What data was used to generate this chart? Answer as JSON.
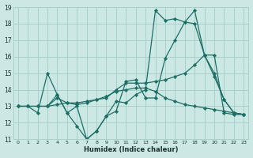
{
  "xlabel": "Humidex (Indice chaleur)",
  "bg_color": "#cce8e4",
  "grid_color": "#aacfcb",
  "line_color": "#1e6e66",
  "xlim_min": -0.5,
  "xlim_max": 23.5,
  "ylim_min": 11,
  "ylim_max": 19,
  "yticks": [
    11,
    12,
    13,
    14,
    15,
    16,
    17,
    18,
    19
  ],
  "xticks": [
    0,
    1,
    2,
    3,
    4,
    5,
    6,
    7,
    8,
    9,
    10,
    11,
    12,
    13,
    14,
    15,
    16,
    17,
    18,
    19,
    20,
    21,
    22,
    23
  ],
  "lines": [
    {
      "x": [
        0,
        1,
        2,
        3,
        4,
        5,
        6,
        7,
        8,
        9,
        10,
        11,
        12,
        13,
        14,
        15,
        16,
        17,
        18,
        19,
        20,
        21,
        22,
        23
      ],
      "y": [
        13.0,
        13.0,
        12.6,
        15.0,
        13.7,
        12.6,
        11.8,
        11.0,
        11.5,
        12.4,
        12.7,
        14.5,
        14.6,
        13.5,
        13.5,
        15.9,
        17.0,
        18.1,
        18.8,
        16.1,
        14.8,
        13.4,
        12.6,
        12.5
      ]
    },
    {
      "x": [
        0,
        1,
        2,
        3,
        4,
        5,
        6,
        7,
        8,
        9,
        10,
        11,
        12,
        13,
        14,
        15,
        16,
        17,
        18,
        19,
        20,
        21,
        22,
        23
      ],
      "y": [
        13.0,
        13.0,
        13.0,
        13.0,
        13.1,
        13.2,
        13.2,
        13.3,
        13.4,
        13.5,
        14.0,
        14.4,
        14.4,
        14.4,
        14.5,
        14.6,
        14.8,
        15.0,
        15.5,
        16.1,
        16.1,
        12.6,
        12.5,
        12.5
      ]
    },
    {
      "x": [
        0,
        1,
        2,
        3,
        4,
        5,
        6,
        7,
        8,
        9,
        10,
        11,
        12,
        13,
        14,
        15,
        16,
        17,
        18,
        19,
        20,
        21,
        22,
        23
      ],
      "y": [
        13.0,
        13.0,
        13.0,
        13.0,
        13.5,
        13.2,
        13.1,
        13.2,
        13.4,
        13.6,
        13.9,
        14.0,
        14.1,
        14.1,
        13.9,
        13.5,
        13.3,
        13.1,
        13.0,
        12.9,
        12.8,
        12.7,
        12.6,
        12.5
      ]
    },
    {
      "x": [
        3,
        4,
        5,
        6,
        7,
        8,
        9,
        10,
        11,
        12,
        13,
        14,
        15,
        16,
        17,
        18,
        19,
        20,
        21,
        22,
        23
      ],
      "y": [
        13.0,
        13.7,
        12.6,
        13.0,
        11.0,
        11.5,
        12.4,
        13.3,
        13.2,
        13.7,
        14.0,
        18.8,
        18.2,
        18.3,
        18.1,
        18.0,
        16.1,
        15.0,
        13.4,
        12.6,
        12.5
      ]
    }
  ]
}
